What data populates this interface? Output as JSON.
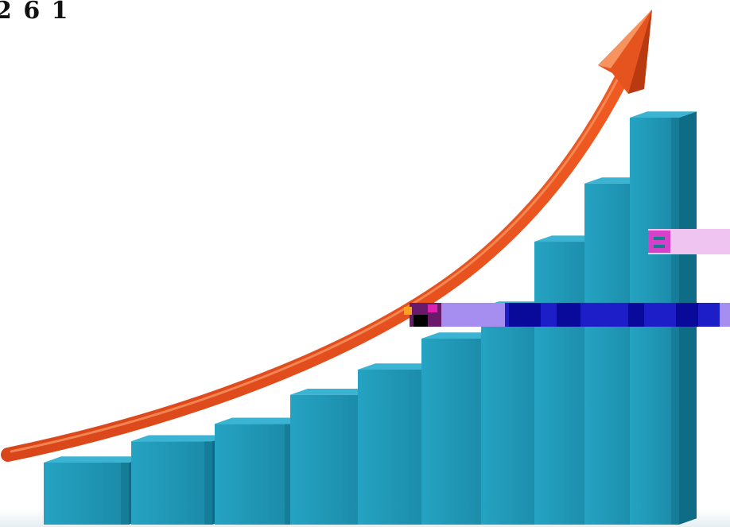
{
  "overlay_text": "2 6 1",
  "colors": {
    "bar_front": "#1d95b4",
    "bar_side": "#0f6c86",
    "bar_top": "#3ab4d2",
    "arrow": "#e5531f",
    "arrow_dark": "#b93a10",
    "arrow_highlight": "#f6935f",
    "floor": "#e9f0f3",
    "glitch_blue": "#1e1ec8",
    "glitch_navy": "#0a0a9a",
    "glitch_lavender": "#a58ef0",
    "glitch_pink": "#f0c4f0",
    "glitch_magenta": "#d020c0"
  },
  "chart_data": {
    "type": "bar",
    "categories": [
      "",
      "",
      "",
      "",
      "",
      "",
      "",
      "",
      "",
      ""
    ],
    "values": [
      1.6,
      2.15,
      2.6,
      3.35,
      4.0,
      4.8,
      5.6,
      7.3,
      8.8,
      10.5
    ],
    "trend": "increasing"
  },
  "icons": {
    "arrow": "trend-up-arrow-icon"
  }
}
